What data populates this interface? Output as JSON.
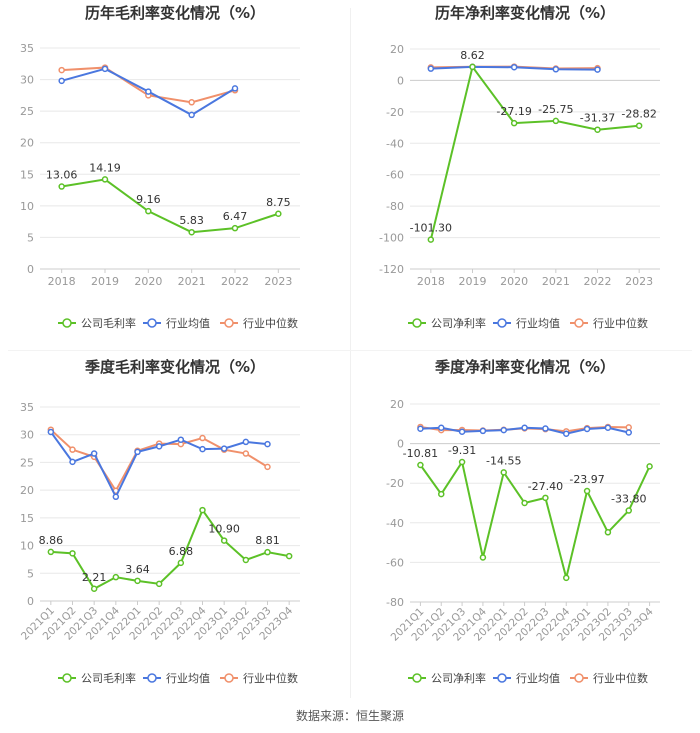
{
  "footer": "数据来源：恒生聚源",
  "colors": {
    "company": "#5cc127",
    "industry_avg": "#4a77df",
    "industry_median": "#f0906b",
    "grid": "#e8e8e8",
    "axis_text": "#999999"
  },
  "chart_data": [
    {
      "type": "line",
      "title": "历年毛利率变化情况（%）",
      "categories": [
        "2018",
        "2019",
        "2020",
        "2021",
        "2022",
        "2023"
      ],
      "ylim": [
        0,
        35
      ],
      "yticks": [
        0,
        5,
        10,
        15,
        20,
        25,
        30,
        35
      ],
      "grid": true,
      "legend_position": "bottom",
      "series": [
        {
          "name": "公司毛利率",
          "values": [
            13.06,
            14.19,
            9.16,
            5.83,
            6.47,
            8.75
          ],
          "labels": [
            "13.06",
            "14.19",
            "9.16",
            "5.83",
            "6.47",
            "8.75"
          ]
        },
        {
          "name": "行业均值",
          "values": [
            29.8,
            31.7,
            28.1,
            24.4,
            28.6,
            null
          ]
        },
        {
          "name": "行业中位数",
          "values": [
            31.5,
            31.9,
            27.5,
            26.4,
            28.3,
            null
          ]
        }
      ]
    },
    {
      "type": "line",
      "title": "历年净利率变化情况（%）",
      "categories": [
        "2018",
        "2019",
        "2020",
        "2021",
        "2022",
        "2023"
      ],
      "ylim": [
        -120,
        20
      ],
      "yticks": [
        -120,
        -100,
        -80,
        -60,
        -40,
        -20,
        0,
        20
      ],
      "grid": true,
      "legend_position": "bottom",
      "series": [
        {
          "name": "公司净利率",
          "values": [
            -101.3,
            8.62,
            -27.19,
            -25.75,
            -31.37,
            -28.82
          ],
          "labels": [
            "-101.30",
            "8.62",
            "-27.19",
            "-25.75",
            "-31.37",
            "-28.82"
          ]
        },
        {
          "name": "行业均值",
          "values": [
            7.5,
            8.6,
            8.4,
            7.1,
            6.9,
            null
          ]
        },
        {
          "name": "行业中位数",
          "values": [
            8.3,
            8.7,
            8.8,
            7.6,
            7.8,
            null
          ]
        }
      ]
    },
    {
      "type": "line",
      "title": "季度毛利率变化情况（%）",
      "categories": [
        "2021Q1",
        "2021Q2",
        "2021Q3",
        "2021Q4",
        "2022Q1",
        "2022Q2",
        "2022Q3",
        "2022Q4",
        "2023Q1",
        "2023Q2",
        "2023Q3",
        "2023Q4"
      ],
      "ylim": [
        0,
        35
      ],
      "yticks": [
        0,
        5,
        10,
        15,
        20,
        25,
        30,
        35
      ],
      "grid": true,
      "legend_position": "bottom",
      "series": [
        {
          "name": "公司毛利率",
          "values": [
            8.86,
            8.6,
            2.21,
            4.3,
            3.64,
            3.1,
            6.88,
            16.4,
            10.9,
            7.4,
            8.81,
            8.1
          ],
          "labels": [
            "8.86",
            "",
            "2.21",
            "",
            "3.64",
            "",
            "6.88",
            "",
            "10.90",
            "",
            "8.81",
            ""
          ]
        },
        {
          "name": "行业均值",
          "values": [
            30.5,
            25.1,
            26.6,
            18.8,
            26.9,
            27.9,
            29.1,
            27.4,
            27.5,
            28.7,
            28.3,
            null
          ]
        },
        {
          "name": "行业中位数",
          "values": [
            30.9,
            27.3,
            26.0,
            19.9,
            27.1,
            28.4,
            28.3,
            29.4,
            27.3,
            26.6,
            24.2,
            null
          ]
        }
      ]
    },
    {
      "type": "line",
      "title": "季度净利率变化情况（%）",
      "categories": [
        "2021Q1",
        "2021Q2",
        "2021Q3",
        "2021Q4",
        "2022Q1",
        "2022Q2",
        "2022Q3",
        "2022Q4",
        "2023Q1",
        "2023Q2",
        "2023Q3",
        "2023Q4"
      ],
      "ylim": [
        -80,
        20
      ],
      "yticks": [
        -80,
        -60,
        -40,
        -20,
        0,
        20
      ],
      "grid": true,
      "legend_position": "bottom",
      "series": [
        {
          "name": "公司净利率",
          "values": [
            -10.81,
            -25.5,
            -9.31,
            -57.5,
            -14.55,
            -30.0,
            -27.4,
            -67.8,
            -23.97,
            -44.8,
            -33.8,
            -11.5
          ],
          "labels": [
            "-10.81",
            "",
            "-9.31",
            "",
            "-14.55",
            "",
            "-27.40",
            "",
            "-23.97",
            "",
            "-33.80",
            ""
          ]
        },
        {
          "name": "行业均值",
          "values": [
            7.5,
            8.0,
            6.0,
            6.4,
            6.8,
            8.0,
            7.6,
            5.0,
            7.4,
            8.0,
            5.6,
            null
          ]
        },
        {
          "name": "行业中位数",
          "values": [
            8.4,
            6.8,
            6.9,
            6.6,
            7.0,
            7.7,
            7.3,
            6.2,
            7.8,
            8.4,
            8.2,
            null
          ]
        }
      ]
    }
  ]
}
